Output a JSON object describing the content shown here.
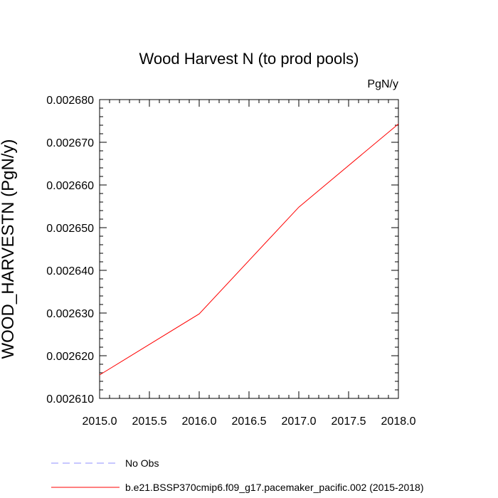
{
  "chart_data": {
    "type": "line",
    "title": "Wood Harvest N (to prod pools)",
    "units_label": "PgN/y",
    "ylabel": "WOOD_HARVESTN  (PgN/y)",
    "xlabel": "",
    "xlim": [
      2015.0,
      2018.0
    ],
    "ylim": [
      0.00261,
      0.00268
    ],
    "x_ticks": [
      "2015.0",
      "2015.5",
      "2016.0",
      "2016.5",
      "2017.0",
      "2017.5",
      "2018.0"
    ],
    "y_ticks": [
      "0.002610",
      "0.002620",
      "0.002630",
      "0.002640",
      "0.002650",
      "0.002660",
      "0.002670",
      "0.002680"
    ],
    "grid": false,
    "legend_position": "bottom",
    "series": [
      {
        "name": "b.e21.BSSP370cmip6.f09_g17.pacemaker_pacific.002 (2015-2018)",
        "color": "#ff0000",
        "style": "solid",
        "x": [
          2015.0,
          2016.0,
          2017.0,
          2018.0
        ],
        "values": [
          0.0026155,
          0.0026298,
          0.0026548,
          0.0026743
        ]
      }
    ],
    "legend": [
      {
        "label": "No Obs",
        "color": "#8f8fff",
        "style": "dashed"
      },
      {
        "label": "b.e21.BSSP370cmip6.f09_g17.pacemaker_pacific.002 (2015-2018)",
        "color": "#ff0000",
        "style": "solid"
      }
    ]
  }
}
